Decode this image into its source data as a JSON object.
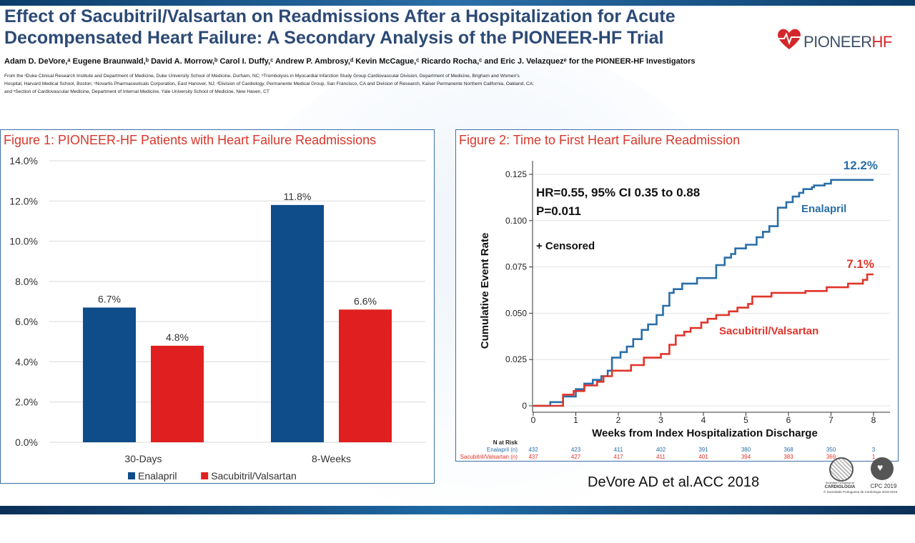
{
  "header": {
    "title_line1": "Effect of Sacubitril/Valsartan on Readmissions After a Hospitalization for Acute",
    "title_line2": "Decompensated Heart Failure: A Secondary Analysis of the PIONEER-HF Trial",
    "authors": "Adam D. DeVore,ᵃ Eugene Braunwald,ᵇ David A. Morrow,ᵇ Carol I. Duffy,ᶜ Andrew P. Ambrosy,ᵈ Kevin McCague,ᶜ Ricardo Rocha,ᶜ and Eric J. Velazquezᵉ for the PIONEER-HF Investigators",
    "affil_line1": "From the ᵃDuke Clinical Research Institute and Department of Medicine, Duke University School of Medicine, Durham, NC; ᵇTrombolysis in Myocardial Infarction Study Group Cardiovascular Division, Department of Medicine, Brigham and Women's",
    "affil_line2": "Hospital, Harvard Medical School, Boston; ᶜNovartis Pharmaceuticals Corporation, East Hanover, NJ; ᵈDivision of Cardiology, Permanente Medical Group, San Francisco, CA and Division of Research, Kaiser Permanente Northern California, Oakland, CA;",
    "affil_line3": "and ᵉSection of Cardiovascular Medicine, Department of Internal Medicine, Yale University School of Medicine, New Haven, CT",
    "logo_text_a": "PIONEER",
    "logo_text_b": "HF"
  },
  "footer": {
    "citation": "DeVore AD et al.ACC 2018",
    "spc_label_small": "Sociedade Portuguesa de",
    "spc_label": "CARDIOLOGIA",
    "cpc_label": "CPC 2019",
    "copyright": "© Sociedade Portuguesa de Cardiologia 2018-2019"
  },
  "colors": {
    "enalapril": "#0f4c8a",
    "sacubitril": "#e02020",
    "km_enalapril": "#2a6ea8",
    "km_sacubitril": "#e0342a"
  },
  "figure1": {
    "title": "Figure 1: PIONEER-HF Patients with Heart Failure Readmissions"
  },
  "figure2": {
    "title": "Figure 2: Time to First Heart Failure Readmission",
    "stats_line1": "HR=0.55, 95% CI 0.35 to 0.88",
    "stats_line2": "P=0.011",
    "censored_label": "+ Censored",
    "label_enalapril": "Enalapril",
    "label_sacubitril": "Sacubitril/Valsartan",
    "end_label_enalapril": "12.2%",
    "end_label_sacubitril": "7.1%",
    "at_risk_header": "N at Risk",
    "at_risk": [
      {
        "label": "Enalapril (n)",
        "values": [
          "432",
          "423",
          "411",
          "402",
          "391",
          "380",
          "368",
          "350",
          "3"
        ]
      },
      {
        "label": "Sacubitril/Valsartan (n)",
        "values": [
          "437",
          "427",
          "417",
          "411",
          "401",
          "394",
          "383",
          "369",
          "1"
        ]
      }
    ]
  },
  "chart_data": [
    {
      "type": "bar",
      "title": "Figure 1: PIONEER-HF Patients with Heart Failure Readmissions",
      "categories": [
        "30-Days",
        "8-Weeks"
      ],
      "series": [
        {
          "name": "Enalapril",
          "values": [
            6.7,
            11.8
          ],
          "labels": [
            "6.7%",
            "11.8%"
          ]
        },
        {
          "name": "Sacubitril/Valsartan",
          "values": [
            4.8,
            6.6
          ],
          "labels": [
            "4.8%",
            "6.6%"
          ]
        }
      ],
      "ylim": [
        0,
        14
      ],
      "yticks": [
        "0.0%",
        "2.0%",
        "4.0%",
        "6.0%",
        "8.0%",
        "10.0%",
        "12.0%",
        "14.0%"
      ],
      "grid": true,
      "legend": "bottom"
    },
    {
      "type": "line",
      "title": "Figure 2: Time to First Heart Failure Readmission",
      "xlabel": "Weeks from Index Hospitalization Discharge",
      "ylabel": "Cumulative Event Rate",
      "xlim": [
        0,
        8
      ],
      "ylim": [
        0,
        0.125
      ],
      "xticks": [
        "0",
        "1",
        "2",
        "3",
        "4",
        "5",
        "6",
        "7",
        "8"
      ],
      "yticks": [
        "0",
        "0.025",
        "0.050",
        "0.075",
        "0.100",
        "0.125"
      ],
      "grid": true,
      "series": [
        {
          "name": "Enalapril",
          "x": [
            0,
            0.4,
            0.4,
            0.7,
            0.7,
            1.0,
            1.0,
            1.2,
            1.2,
            1.4,
            1.4,
            1.6,
            1.6,
            1.75,
            1.75,
            1.85,
            1.85,
            2.05,
            2.05,
            2.2,
            2.2,
            2.35,
            2.35,
            2.55,
            2.55,
            2.7,
            2.7,
            2.9,
            2.9,
            3.05,
            3.05,
            3.2,
            3.2,
            3.3,
            3.3,
            3.5,
            3.5,
            3.85,
            3.85,
            4.3,
            4.3,
            4.5,
            4.5,
            4.65,
            4.65,
            4.75,
            4.75,
            5.0,
            5.0,
            5.25,
            5.25,
            5.4,
            5.4,
            5.55,
            5.55,
            5.75,
            5.75,
            5.95,
            5.95,
            6.1,
            6.1,
            6.25,
            6.25,
            6.35,
            6.35,
            6.55,
            6.55,
            6.6,
            6.6,
            6.85,
            6.85,
            7.0,
            7.0,
            8.0
          ],
          "y": [
            0,
            0,
            0.002,
            0.002,
            0.005,
            0.005,
            0.009,
            0.009,
            0.012,
            0.012,
            0.014,
            0.014,
            0.016,
            0.016,
            0.019,
            0.019,
            0.026,
            0.026,
            0.029,
            0.029,
            0.032,
            0.032,
            0.036,
            0.036,
            0.041,
            0.041,
            0.044,
            0.044,
            0.049,
            0.049,
            0.054,
            0.054,
            0.061,
            0.061,
            0.063,
            0.063,
            0.066,
            0.066,
            0.069,
            0.069,
            0.076,
            0.076,
            0.08,
            0.08,
            0.082,
            0.082,
            0.085,
            0.085,
            0.087,
            0.087,
            0.091,
            0.091,
            0.094,
            0.094,
            0.097,
            0.097,
            0.107,
            0.107,
            0.11,
            0.11,
            0.113,
            0.113,
            0.115,
            0.115,
            0.117,
            0.117,
            0.118,
            0.118,
            0.119,
            0.119,
            0.12,
            0.12,
            0.122,
            0.122
          ]
        },
        {
          "name": "Sacubitril/Valsartan",
          "x": [
            0,
            0.7,
            0.7,
            0.95,
            0.95,
            1.2,
            1.2,
            1.5,
            1.5,
            1.65,
            1.65,
            1.85,
            1.85,
            2.3,
            2.3,
            2.6,
            2.6,
            3.0,
            3.0,
            3.2,
            3.2,
            3.35,
            3.35,
            3.55,
            3.55,
            3.7,
            3.7,
            3.95,
            3.95,
            4.1,
            4.1,
            4.3,
            4.3,
            4.6,
            4.6,
            4.8,
            4.8,
            5.05,
            5.05,
            5.15,
            5.15,
            5.6,
            5.6,
            6.4,
            6.4,
            6.9,
            6.9,
            7.4,
            7.4,
            7.75,
            7.75,
            7.85,
            7.85,
            8.0
          ],
          "y": [
            0,
            0,
            0.006,
            0.006,
            0.008,
            0.008,
            0.011,
            0.011,
            0.013,
            0.013,
            0.016,
            0.016,
            0.019,
            0.019,
            0.022,
            0.022,
            0.026,
            0.026,
            0.028,
            0.028,
            0.033,
            0.033,
            0.038,
            0.038,
            0.04,
            0.04,
            0.042,
            0.042,
            0.045,
            0.045,
            0.047,
            0.047,
            0.049,
            0.049,
            0.051,
            0.051,
            0.053,
            0.053,
            0.055,
            0.055,
            0.059,
            0.059,
            0.061,
            0.061,
            0.062,
            0.062,
            0.064,
            0.064,
            0.066,
            0.066,
            0.068,
            0.068,
            0.071,
            0.071
          ]
        }
      ]
    }
  ]
}
